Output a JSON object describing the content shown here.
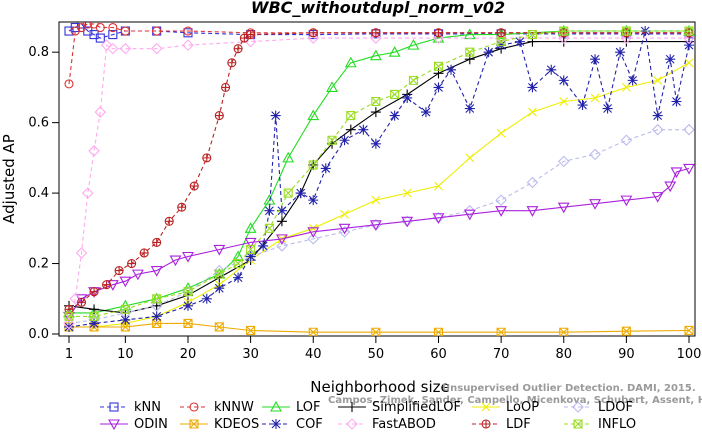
{
  "chart_data": {
    "type": "line",
    "title": "WBC_withoutdupl_norm_v02",
    "xlabel": "Neighborhood size",
    "ylabel": "Adjusted AP",
    "xlim": [
      1,
      100
    ],
    "ylim": [
      0,
      0.88
    ],
    "xticks": [
      1,
      10,
      20,
      30,
      40,
      50,
      60,
      70,
      80,
      90,
      100
    ],
    "yticks": [
      0.0,
      0.2,
      0.4,
      0.6,
      0.8
    ],
    "grid": false,
    "legend_position": "bottom",
    "watermark": [
      "Unsupervised Outlier Detection. DAMI, 2015.",
      "Campos, Zimek, Sander, Campello, Micenkova, Schubert, Assent, Houle"
    ],
    "series": [
      {
        "name": "kNN",
        "color": "#3333dd",
        "marker": "square",
        "line": "dashed",
        "points": [
          [
            1,
            0.86
          ],
          [
            2,
            0.87
          ],
          [
            3,
            0.88
          ],
          [
            4,
            0.86
          ],
          [
            5,
            0.85
          ],
          [
            6,
            0.84
          ],
          [
            8,
            0.85
          ],
          [
            10,
            0.86
          ],
          [
            15,
            0.86
          ],
          [
            20,
            0.855
          ],
          [
            30,
            0.85
          ],
          [
            40,
            0.85
          ],
          [
            50,
            0.852
          ],
          [
            60,
            0.852
          ],
          [
            70,
            0.852
          ],
          [
            80,
            0.852
          ],
          [
            90,
            0.852
          ],
          [
            100,
            0.852
          ]
        ]
      },
      {
        "name": "kNNW",
        "color": "#dd3333",
        "marker": "circle",
        "line": "dashed",
        "points": [
          [
            1,
            0.71
          ],
          [
            2,
            0.86
          ],
          [
            3,
            0.87
          ],
          [
            4,
            0.88
          ],
          [
            5,
            0.88
          ],
          [
            6,
            0.87
          ],
          [
            8,
            0.87
          ],
          [
            10,
            0.86
          ],
          [
            15,
            0.86
          ],
          [
            20,
            0.86
          ],
          [
            30,
            0.855
          ],
          [
            40,
            0.855
          ],
          [
            50,
            0.855
          ],
          [
            60,
            0.855
          ],
          [
            70,
            0.855
          ],
          [
            80,
            0.855
          ],
          [
            90,
            0.855
          ],
          [
            100,
            0.855
          ]
        ]
      },
      {
        "name": "LOF",
        "color": "#22dd22",
        "marker": "triangle-up",
        "line": "solid",
        "points": [
          [
            1,
            0.06
          ],
          [
            5,
            0.06
          ],
          [
            10,
            0.08
          ],
          [
            15,
            0.1
          ],
          [
            20,
            0.13
          ],
          [
            25,
            0.17
          ],
          [
            28,
            0.22
          ],
          [
            30,
            0.3
          ],
          [
            33,
            0.38
          ],
          [
            36,
            0.5
          ],
          [
            40,
            0.62
          ],
          [
            43,
            0.7
          ],
          [
            46,
            0.77
          ],
          [
            50,
            0.79
          ],
          [
            53,
            0.8
          ],
          [
            56,
            0.82
          ],
          [
            60,
            0.84
          ],
          [
            65,
            0.85
          ],
          [
            70,
            0.85
          ],
          [
            80,
            0.86
          ],
          [
            90,
            0.86
          ],
          [
            100,
            0.86
          ]
        ]
      },
      {
        "name": "SimplifiedLOF",
        "color": "#000000",
        "marker": "plus",
        "line": "solid",
        "points": [
          [
            1,
            0.08
          ],
          [
            5,
            0.07
          ],
          [
            10,
            0.06
          ],
          [
            15,
            0.08
          ],
          [
            20,
            0.11
          ],
          [
            25,
            0.16
          ],
          [
            30,
            0.21
          ],
          [
            35,
            0.32
          ],
          [
            38,
            0.4
          ],
          [
            40,
            0.48
          ],
          [
            43,
            0.54
          ],
          [
            46,
            0.58
          ],
          [
            50,
            0.63
          ],
          [
            55,
            0.68
          ],
          [
            60,
            0.74
          ],
          [
            65,
            0.78
          ],
          [
            70,
            0.81
          ],
          [
            75,
            0.83
          ],
          [
            80,
            0.83
          ],
          [
            90,
            0.83
          ],
          [
            100,
            0.83
          ]
        ]
      },
      {
        "name": "LoOP",
        "color": "#eeee00",
        "marker": "x",
        "line": "solid",
        "points": [
          [
            1,
            0.02
          ],
          [
            5,
            0.02
          ],
          [
            10,
            0.03
          ],
          [
            15,
            0.05
          ],
          [
            20,
            0.09
          ],
          [
            25,
            0.14
          ],
          [
            30,
            0.21
          ],
          [
            35,
            0.27
          ],
          [
            40,
            0.3
          ],
          [
            45,
            0.34
          ],
          [
            50,
            0.38
          ],
          [
            55,
            0.4
          ],
          [
            60,
            0.42
          ],
          [
            65,
            0.5
          ],
          [
            70,
            0.57
          ],
          [
            75,
            0.63
          ],
          [
            80,
            0.66
          ],
          [
            85,
            0.67
          ],
          [
            90,
            0.7
          ],
          [
            95,
            0.72
          ],
          [
            100,
            0.77
          ]
        ]
      },
      {
        "name": "LDOF",
        "color": "#bbbbee",
        "marker": "diamond",
        "line": "dashed",
        "points": [
          [
            1,
            0.03
          ],
          [
            5,
            0.04
          ],
          [
            10,
            0.06
          ],
          [
            15,
            0.08
          ],
          [
            20,
            0.12
          ],
          [
            25,
            0.18
          ],
          [
            30,
            0.22
          ],
          [
            35,
            0.25
          ],
          [
            40,
            0.27
          ],
          [
            45,
            0.29
          ],
          [
            50,
            0.31
          ],
          [
            55,
            0.32
          ],
          [
            60,
            0.33
          ],
          [
            65,
            0.35
          ],
          [
            70,
            0.38
          ],
          [
            75,
            0.43
          ],
          [
            80,
            0.49
          ],
          [
            85,
            0.51
          ],
          [
            90,
            0.55
          ],
          [
            95,
            0.58
          ],
          [
            100,
            0.58
          ]
        ]
      },
      {
        "name": "ODIN",
        "color": "#aa22dd",
        "marker": "triangle-down",
        "line": "solid",
        "points": [
          [
            1,
            0.05
          ],
          [
            3,
            0.1
          ],
          [
            5,
            0.12
          ],
          [
            8,
            0.14
          ],
          [
            10,
            0.15
          ],
          [
            12,
            0.17
          ],
          [
            15,
            0.18
          ],
          [
            18,
            0.21
          ],
          [
            20,
            0.22
          ],
          [
            25,
            0.24
          ],
          [
            30,
            0.26
          ],
          [
            35,
            0.27
          ],
          [
            40,
            0.29
          ],
          [
            45,
            0.3
          ],
          [
            50,
            0.31
          ],
          [
            55,
            0.32
          ],
          [
            60,
            0.33
          ],
          [
            65,
            0.34
          ],
          [
            70,
            0.35
          ],
          [
            75,
            0.35
          ],
          [
            80,
            0.36
          ],
          [
            85,
            0.37
          ],
          [
            90,
            0.38
          ],
          [
            95,
            0.39
          ],
          [
            97,
            0.42
          ],
          [
            98,
            0.46
          ],
          [
            100,
            0.47
          ]
        ]
      },
      {
        "name": "KDEOS",
        "color": "#eeaa00",
        "marker": "square-x",
        "line": "solid",
        "points": [
          [
            1,
            0.02
          ],
          [
            5,
            0.02
          ],
          [
            10,
            0.02
          ],
          [
            15,
            0.03
          ],
          [
            20,
            0.03
          ],
          [
            25,
            0.02
          ],
          [
            30,
            0.01
          ],
          [
            40,
            0.005
          ],
          [
            50,
            0.005
          ],
          [
            60,
            0.005
          ],
          [
            70,
            0.005
          ],
          [
            80,
            0.005
          ],
          [
            90,
            0.008
          ],
          [
            100,
            0.01
          ]
        ]
      },
      {
        "name": "COF",
        "color": "#2222aa",
        "marker": "asterisk",
        "line": "dashed",
        "points": [
          [
            1,
            0.02
          ],
          [
            5,
            0.03
          ],
          [
            10,
            0.04
          ],
          [
            15,
            0.05
          ],
          [
            20,
            0.08
          ],
          [
            23,
            0.1
          ],
          [
            25,
            0.13
          ],
          [
            28,
            0.16
          ],
          [
            30,
            0.22
          ],
          [
            32,
            0.25
          ],
          [
            33,
            0.35
          ],
          [
            34,
            0.62
          ],
          [
            35,
            0.35
          ],
          [
            38,
            0.4
          ],
          [
            40,
            0.38
          ],
          [
            42,
            0.47
          ],
          [
            45,
            0.55
          ],
          [
            48,
            0.58
          ],
          [
            50,
            0.54
          ],
          [
            53,
            0.62
          ],
          [
            55,
            0.67
          ],
          [
            58,
            0.63
          ],
          [
            60,
            0.7
          ],
          [
            62,
            0.75
          ],
          [
            65,
            0.64
          ],
          [
            68,
            0.8
          ],
          [
            70,
            0.82
          ],
          [
            73,
            0.83
          ],
          [
            75,
            0.7
          ],
          [
            78,
            0.75
          ],
          [
            80,
            0.72
          ],
          [
            83,
            0.65
          ],
          [
            85,
            0.78
          ],
          [
            87,
            0.64
          ],
          [
            89,
            0.8
          ],
          [
            91,
            0.72
          ],
          [
            93,
            0.86
          ],
          [
            95,
            0.62
          ],
          [
            97,
            0.78
          ],
          [
            98,
            0.66
          ],
          [
            100,
            0.82
          ]
        ]
      },
      {
        "name": "FastABOD",
        "color": "#ffaaee",
        "marker": "diamond",
        "line": "dashed",
        "points": [
          [
            1,
            0.03
          ],
          [
            2,
            0.1
          ],
          [
            3,
            0.23
          ],
          [
            4,
            0.4
          ],
          [
            5,
            0.52
          ],
          [
            6,
            0.63
          ],
          [
            7,
            0.82
          ],
          [
            8,
            0.81
          ],
          [
            10,
            0.81
          ],
          [
            15,
            0.81
          ],
          [
            20,
            0.82
          ],
          [
            30,
            0.83
          ],
          [
            40,
            0.84
          ],
          [
            50,
            0.84
          ],
          [
            60,
            0.84
          ],
          [
            70,
            0.84
          ],
          [
            80,
            0.84
          ],
          [
            90,
            0.84
          ],
          [
            100,
            0.84
          ]
        ]
      },
      {
        "name": "LDF",
        "color": "#bb2222",
        "marker": "circle-plus",
        "line": "dashed",
        "points": [
          [
            1,
            0.07
          ],
          [
            3,
            0.09
          ],
          [
            5,
            0.12
          ],
          [
            7,
            0.14
          ],
          [
            9,
            0.18
          ],
          [
            11,
            0.2
          ],
          [
            13,
            0.23
          ],
          [
            15,
            0.26
          ],
          [
            17,
            0.32
          ],
          [
            19,
            0.36
          ],
          [
            21,
            0.42
          ],
          [
            23,
            0.5
          ],
          [
            25,
            0.62
          ],
          [
            26,
            0.7
          ],
          [
            27,
            0.77
          ],
          [
            28,
            0.81
          ],
          [
            29,
            0.84
          ],
          [
            30,
            0.85
          ],
          [
            40,
            0.855
          ],
          [
            50,
            0.855
          ],
          [
            60,
            0.855
          ],
          [
            70,
            0.855
          ],
          [
            80,
            0.855
          ],
          [
            90,
            0.855
          ],
          [
            100,
            0.855
          ]
        ]
      },
      {
        "name": "INFLO",
        "color": "#99dd22",
        "marker": "square-x",
        "line": "dashed",
        "points": [
          [
            1,
            0.05
          ],
          [
            5,
            0.05
          ],
          [
            10,
            0.07
          ],
          [
            15,
            0.1
          ],
          [
            20,
            0.12
          ],
          [
            25,
            0.17
          ],
          [
            28,
            0.2
          ],
          [
            30,
            0.24
          ],
          [
            33,
            0.3
          ],
          [
            36,
            0.4
          ],
          [
            40,
            0.48
          ],
          [
            43,
            0.55
          ],
          [
            46,
            0.62
          ],
          [
            50,
            0.66
          ],
          [
            53,
            0.68
          ],
          [
            56,
            0.72
          ],
          [
            60,
            0.76
          ],
          [
            65,
            0.8
          ],
          [
            70,
            0.83
          ],
          [
            75,
            0.85
          ],
          [
            80,
            0.86
          ],
          [
            90,
            0.86
          ],
          [
            100,
            0.86
          ]
        ]
      }
    ]
  }
}
